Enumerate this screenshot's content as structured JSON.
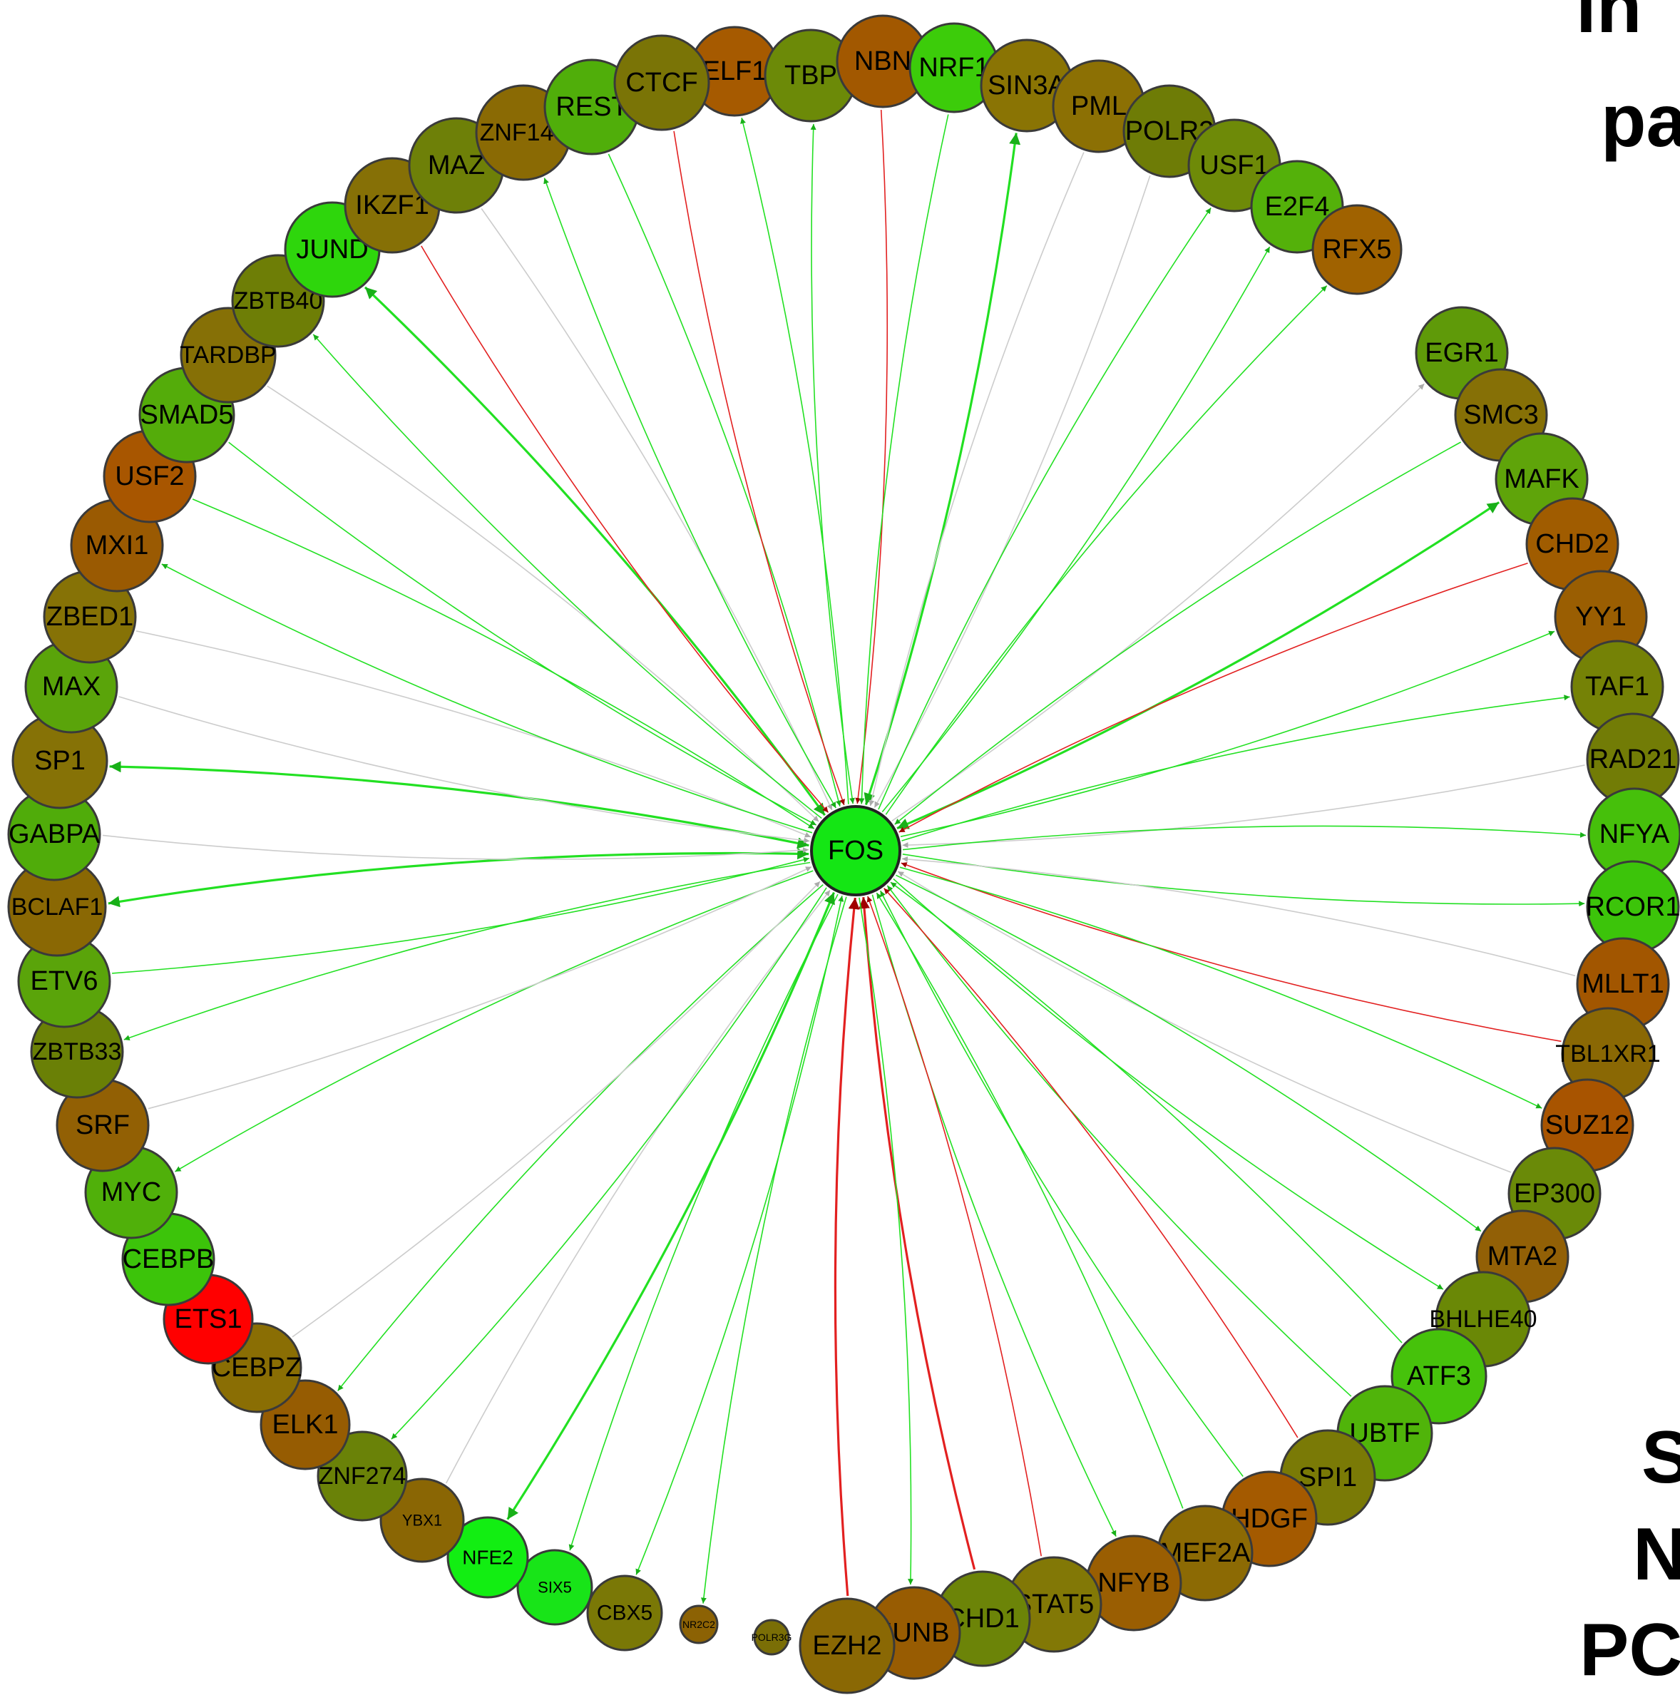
{
  "hub": {
    "label": "FOS",
    "color": "#14e614"
  },
  "side_text": [
    "in",
    "pa",
    "S",
    "N",
    "PC"
  ],
  "colors": {
    "activation": "#22e022",
    "repression": "#e22020",
    "neutral": "#cccccc"
  },
  "nodes": [
    {
      "label": "ELF1",
      "color": "#a65a00",
      "edge": "activation",
      "dir": "out"
    },
    {
      "label": "TBP",
      "color": "#6c8a08",
      "edge": "activation",
      "dir": "both"
    },
    {
      "label": "NBN",
      "color": "#a25800",
      "edge": "repression",
      "dir": "in"
    },
    {
      "label": "NRF1",
      "color": "#3ccc0a",
      "edge": "activation",
      "dir": "in"
    },
    {
      "label": "SIN3A",
      "color": "#8a7404",
      "edge": "activation",
      "dir": "both"
    },
    {
      "label": "PML",
      "color": "#8c7004",
      "edge": "neutral",
      "dir": "in"
    },
    {
      "label": "POLR2",
      "color": "#6e7c06",
      "edge": "neutral",
      "dir": "in"
    },
    {
      "label": "USF1",
      "color": "#6e8a08",
      "edge": "activation",
      "dir": "out"
    },
    {
      "label": "E2F4",
      "color": "#54b10a",
      "edge": "activation",
      "dir": "out"
    },
    {
      "label": "RFX5",
      "color": "#a06200",
      "edge": "activation",
      "dir": "out"
    },
    {
      "label": "EGR1",
      "color": "#5f9a09",
      "edge": "neutral",
      "dir": "out"
    },
    {
      "label": "SMC3",
      "color": "#867006",
      "edge": "activation",
      "dir": "in"
    },
    {
      "label": "MAFK",
      "color": "#5fa40a",
      "edge": "activation",
      "dir": "both"
    },
    {
      "label": "CHD2",
      "color": "#a05c00",
      "edge": "repression",
      "dir": "in"
    },
    {
      "label": "YY1",
      "color": "#9a5e02",
      "edge": "activation",
      "dir": "out"
    },
    {
      "label": "TAF1",
      "color": "#758206",
      "edge": "activation",
      "dir": "out"
    },
    {
      "label": "RAD21",
      "color": "#727c06",
      "edge": "neutral",
      "dir": "in"
    },
    {
      "label": "NFYA",
      "color": "#46c00b",
      "edge": "activation",
      "dir": "out"
    },
    {
      "label": "RCOR1",
      "color": "#3cc40a",
      "edge": "activation",
      "dir": "out"
    },
    {
      "label": "MLLT1",
      "color": "#a25600",
      "edge": "neutral",
      "dir": "in"
    },
    {
      "label": "TBL1XR1",
      "color": "#8a6804",
      "edge": "repression",
      "dir": "in"
    },
    {
      "label": "SUZ12",
      "color": "#a85400",
      "edge": "activation",
      "dir": "out"
    },
    {
      "label": "EP300",
      "color": "#6a8a08",
      "edge": "neutral",
      "dir": "in"
    },
    {
      "label": "MTA2",
      "color": "#926006",
      "edge": "activation",
      "dir": "out"
    },
    {
      "label": "BHLHE40",
      "color": "#6a8806",
      "edge": "activation",
      "dir": "out"
    },
    {
      "label": "ATF3",
      "color": "#46c20b",
      "edge": "activation",
      "dir": "in"
    },
    {
      "label": "UBTF",
      "color": "#50b40a",
      "edge": "activation",
      "dir": "in"
    },
    {
      "label": "SPI1",
      "color": "#7a7a06",
      "edge": "repression",
      "dir": "in"
    },
    {
      "label": "HDGF",
      "color": "#a45a00",
      "edge": "activation",
      "dir": "in"
    },
    {
      "label": "MEF2A",
      "color": "#8c6a04",
      "edge": "activation",
      "dir": "in"
    },
    {
      "label": "NFYB",
      "color": "#9a5e02",
      "edge": "activation",
      "dir": "out"
    },
    {
      "label": "STAT5",
      "color": "#827806",
      "edge": "repression",
      "dir": "in"
    },
    {
      "label": "CHD1",
      "color": "#6c8408",
      "edge": "repression",
      "dir": "in"
    },
    {
      "label": "JUNB",
      "color": "#985c02",
      "edge": "activation",
      "dir": "out"
    },
    {
      "label": "EZH2",
      "color": "#8a6804",
      "edge": "repression",
      "dir": "in"
    },
    {
      "label": "POLR3G",
      "color": "#7a6e06",
      "edge": "none",
      "dir": "none"
    },
    {
      "label": "NR2C2",
      "color": "#8c6204",
      "edge": "activation",
      "dir": "out"
    },
    {
      "label": "CBX5",
      "color": "#7a7806",
      "edge": "activation",
      "dir": "both"
    },
    {
      "label": "SIX5",
      "color": "#18e418",
      "edge": "activation",
      "dir": "out"
    },
    {
      "label": "NFE2",
      "color": "#12ee12",
      "edge": "activation",
      "dir": "both"
    },
    {
      "label": "YBX1",
      "color": "#8a6604",
      "edge": "neutral",
      "dir": "in"
    },
    {
      "label": "ZNF274",
      "color": "#6a8208",
      "edge": "activation",
      "dir": "out"
    },
    {
      "label": "ELK1",
      "color": "#965c02",
      "edge": "activation",
      "dir": "out"
    },
    {
      "label": "CEBPZ",
      "color": "#8a6e04",
      "edge": "neutral",
      "dir": "in"
    },
    {
      "label": "ETS1",
      "color": "#ff0000",
      "edge": "none",
      "dir": "none"
    },
    {
      "label": "CEBPB",
      "color": "#3cc40a",
      "edge": "none",
      "dir": "none"
    },
    {
      "label": "MYC",
      "color": "#50b00a",
      "edge": "activation",
      "dir": "out"
    },
    {
      "label": "SRF",
      "color": "#926004",
      "edge": "neutral",
      "dir": "in"
    },
    {
      "label": "ZBTB33",
      "color": "#6a8006",
      "edge": "activation",
      "dir": "out"
    },
    {
      "label": "ETV6",
      "color": "#5aa40a",
      "edge": "activation",
      "dir": "in"
    },
    {
      "label": "BCLAF1",
      "color": "#8a6804",
      "edge": "activation",
      "dir": "both"
    },
    {
      "label": "GABPA",
      "color": "#50ac0a",
      "edge": "neutral",
      "dir": "in"
    },
    {
      "label": "SP1",
      "color": "#867206",
      "edge": "activation",
      "dir": "both"
    },
    {
      "label": "MAX",
      "color": "#5aa40a",
      "edge": "neutral",
      "dir": "in"
    },
    {
      "label": "ZBED1",
      "color": "#867206",
      "edge": "neutral",
      "dir": "in"
    },
    {
      "label": "MXI1",
      "color": "#9a5a02",
      "edge": "activation",
      "dir": "out"
    },
    {
      "label": "USF2",
      "color": "#a85600",
      "edge": "activation",
      "dir": "in"
    },
    {
      "label": "SMAD5",
      "color": "#54ac0a",
      "edge": "activation",
      "dir": "in"
    },
    {
      "label": "TARDBP",
      "color": "#867006",
      "edge": "neutral",
      "dir": "in"
    },
    {
      "label": "ZBTB40",
      "color": "#6e7e06",
      "edge": "activation",
      "dir": "out"
    },
    {
      "label": "JUND",
      "color": "#2ed60c",
      "edge": "activation",
      "dir": "both"
    },
    {
      "label": "IKZF1",
      "color": "#867006",
      "edge": "repression",
      "dir": "in"
    },
    {
      "label": "MAZ",
      "color": "#6e8008",
      "edge": "neutral",
      "dir": "in"
    },
    {
      "label": "ZNF143",
      "color": "#8a6a04",
      "edge": "activation",
      "dir": "both"
    },
    {
      "label": "REST",
      "color": "#50ae0a",
      "edge": "activation",
      "dir": "in"
    },
    {
      "label": "CTCF",
      "color": "#7a7406",
      "edge": "repression",
      "dir": "in"
    }
  ]
}
